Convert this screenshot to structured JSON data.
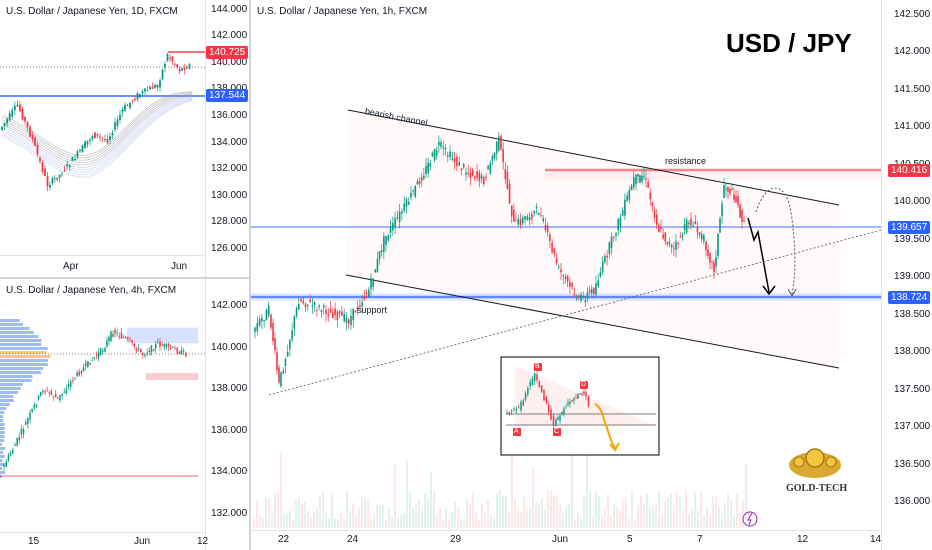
{
  "panels": {
    "daily": {
      "title": "U.S. Dollar / Japanese Yen, 1D, FXCM",
      "y_ticks": [
        "144.000",
        "142.000",
        "140.000",
        "138.000",
        "136.000",
        "134.000",
        "132.000",
        "130.000",
        "128.000",
        "126.000"
      ],
      "price_badges": [
        {
          "value": "140.725",
          "color": "#f23645"
        },
        {
          "value": "137.544",
          "color": "#2962ff"
        }
      ],
      "x_ticks": [
        "Apr",
        "Jun"
      ]
    },
    "h4": {
      "title": "U.S. Dollar / Japanese Yen, 4h, FXCM",
      "y_ticks": [
        "142.000",
        "140.000",
        "138.000",
        "136.000",
        "134.000",
        "132.000"
      ],
      "x_ticks": [
        "15",
        "Jun",
        "12"
      ]
    },
    "h1": {
      "title": "U.S. Dollar / Japanese Yen, 1h, FXCM",
      "headline": "USD / JPY",
      "y_ticks": [
        "142.500",
        "142.000",
        "141.500",
        "141.000",
        "140.500",
        "140.000",
        "139.500",
        "139.000",
        "138.500",
        "138.000",
        "137.500",
        "137.000",
        "136.500",
        "136.000"
      ],
      "price_badges": [
        {
          "value": "140.416",
          "color": "#f23645"
        },
        {
          "value": "139.657",
          "color": "#2962ff"
        },
        {
          "value": "138.724",
          "color": "#2962ff"
        }
      ],
      "x_ticks": [
        "22",
        "24",
        "29",
        "Jun",
        "5",
        "7",
        "12",
        "14"
      ],
      "annotations": {
        "channel": "bearish channel",
        "resistance": "resistance",
        "support": "support"
      },
      "pattern_points": [
        "A",
        "B",
        "C",
        "D"
      ],
      "logo_text": "GOLD-TECH"
    }
  },
  "colors": {
    "up": "#089981",
    "down": "#f23645",
    "support": "#2962ff",
    "resistance": "#f23645",
    "accent": "#f7a600"
  }
}
